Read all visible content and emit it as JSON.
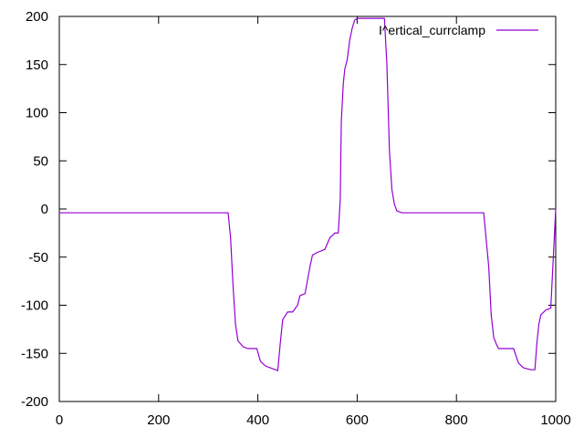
{
  "chart_data": {
    "type": "line",
    "title": "",
    "xlabel": "",
    "ylabel": "",
    "xlim": [
      0,
      1000
    ],
    "ylim": [
      -200,
      200
    ],
    "x_ticks": [
      0,
      200,
      400,
      600,
      800,
      1000
    ],
    "y_ticks": [
      -200,
      -150,
      -100,
      -50,
      0,
      50,
      100,
      150,
      200
    ],
    "x_tick_labels": [
      "0",
      "200",
      "400",
      "600",
      "800",
      "1000"
    ],
    "y_tick_labels": [
      "-200",
      "-150",
      "-100",
      "-50",
      "0",
      "50",
      "100",
      "150",
      "200"
    ],
    "grid": false,
    "legend_position": "top-right",
    "series": [
      {
        "name": "I^ertical_currclamp",
        "color": "#9400d3",
        "x": [
          0,
          340,
          345,
          350,
          355,
          360,
          370,
          380,
          390,
          398,
          405,
          415,
          425,
          440,
          445,
          450,
          460,
          470,
          480,
          485,
          495,
          505,
          510,
          520,
          535,
          545,
          555,
          562,
          566,
          568,
          572,
          575,
          580,
          585,
          590,
          595,
          600,
          610,
          620,
          630,
          640,
          655,
          660,
          665,
          670,
          675,
          680,
          690,
          720,
          780,
          855,
          865,
          870,
          875,
          880,
          885,
          895,
          905,
          915,
          925,
          935,
          950,
          958,
          962,
          966,
          970,
          980,
          990,
          1000
        ],
        "y": [
          -4,
          -4,
          -30,
          -80,
          -120,
          -137,
          -143,
          -145,
          -145,
          -145,
          -158,
          -163,
          -165,
          -168,
          -140,
          -115,
          -107,
          -107,
          -100,
          -90,
          -88,
          -60,
          -48,
          -45,
          -42,
          -30,
          -25,
          -25,
          10,
          90,
          130,
          145,
          155,
          175,
          188,
          196,
          198,
          198,
          198,
          198,
          198,
          198,
          150,
          60,
          20,
          5,
          -2,
          -4,
          -4,
          -4,
          -4,
          -60,
          -110,
          -133,
          -140,
          -145,
          -145,
          -145,
          -145,
          -160,
          -165,
          -167,
          -167,
          -140,
          -120,
          -110,
          -105,
          -103,
          0
        ]
      }
    ]
  }
}
